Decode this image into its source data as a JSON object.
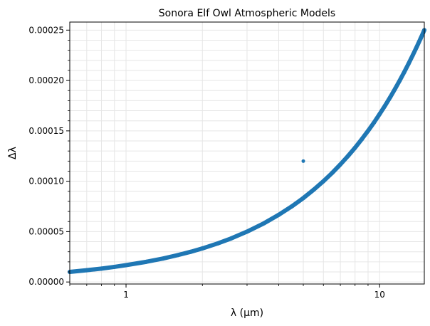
{
  "chart_data": {
    "type": "scatter",
    "title": "Sonora Elf Owl Atmospheric Models",
    "xlabel": "λ (μm)",
    "ylabel": "Δλ",
    "xscale": "log",
    "xlim": [
      0.6,
      15.0
    ],
    "ylim": [
      -2e-06,
      0.000258
    ],
    "x_ticks": [
      {
        "value": 1,
        "label": "1"
      },
      {
        "value": 10,
        "label": "10"
      }
    ],
    "y_ticks": [
      {
        "value": 0.0,
        "label": "0.00000"
      },
      {
        "value": 5e-05,
        "label": "0.00005"
      },
      {
        "value": 0.0001,
        "label": "0.00010"
      },
      {
        "value": 0.00015,
        "label": "0.00015"
      },
      {
        "value": 0.0002,
        "label": "0.00020"
      },
      {
        "value": 0.00025,
        "label": "0.00025"
      }
    ],
    "grid": true,
    "color": "#1f77b4",
    "series": [
      {
        "x": [
          0.6,
          0.7,
          0.8,
          0.9,
          1.0,
          1.2,
          1.4,
          1.6,
          1.8,
          2.0,
          2.3,
          2.6,
          3.0,
          3.5,
          4.0,
          4.5,
          5.0,
          5.5,
          6.0,
          6.5,
          7.0,
          7.5,
          8.0,
          8.5,
          9.0,
          9.5,
          10.0,
          10.5,
          11.0,
          11.5,
          12.0,
          12.5,
          13.0,
          13.5,
          14.0,
          14.5,
          15.0
        ],
        "y": [
          1e-05,
          1.17e-05,
          1.33e-05,
          1.5e-05,
          1.67e-05,
          2e-05,
          2.33e-05,
          2.67e-05,
          3e-05,
          3.33e-05,
          3.83e-05,
          4.33e-05,
          5e-05,
          5.83e-05,
          6.67e-05,
          7.5e-05,
          8.33e-05,
          9.17e-05,
          0.0001,
          0.0001083,
          0.0001167,
          0.000125,
          0.0001333,
          0.0001417,
          0.00015,
          0.0001583,
          0.0001667,
          0.000175,
          0.0001833,
          0.0001917,
          0.0002,
          0.0002083,
          0.0002167,
          0.000225,
          0.0002333,
          0.0002417,
          0.00025
        ]
      },
      {
        "x": [
          5.0
        ],
        "y": [
          0.00012
        ]
      }
    ]
  }
}
